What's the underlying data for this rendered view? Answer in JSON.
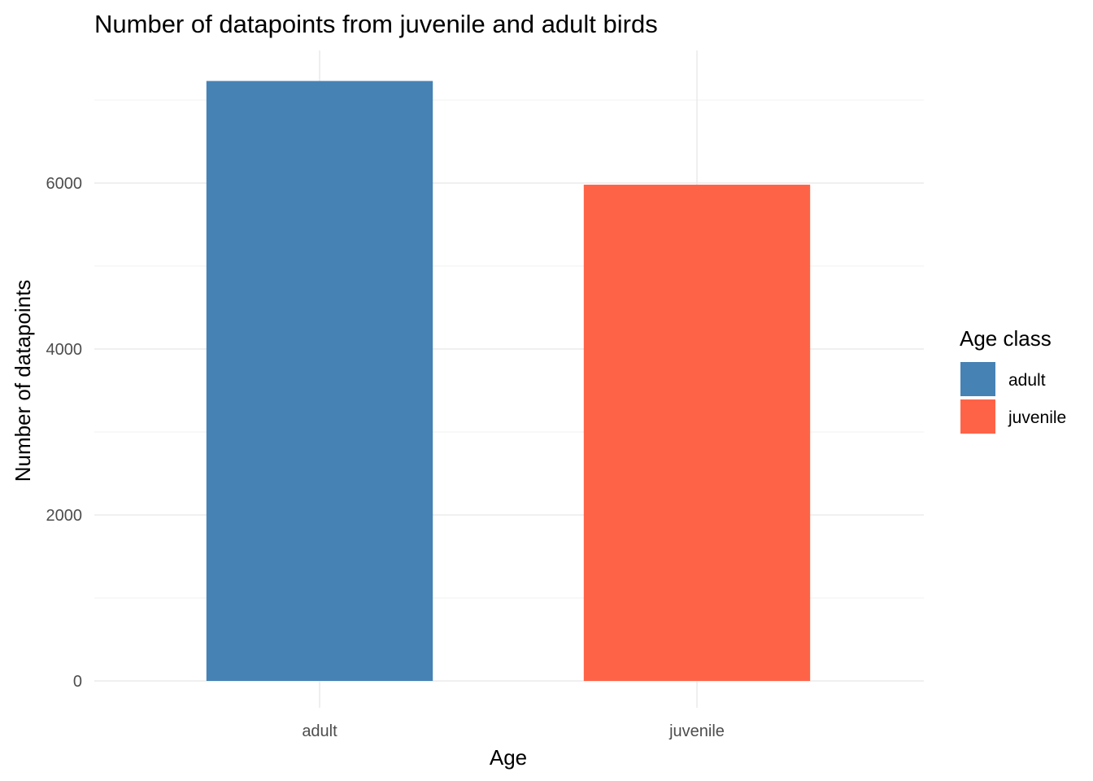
{
  "chart_data": {
    "type": "bar",
    "title": "Number of datapoints from juvenile and adult birds",
    "xlabel": "Age",
    "ylabel": "Number of datapoints",
    "categories": [
      "adult",
      "juvenile"
    ],
    "values": [
      7230,
      5980
    ],
    "colors": [
      "#4682B4",
      "#FF6347"
    ],
    "ylim": [
      0,
      7600
    ],
    "yticks": [
      0,
      2000,
      4000,
      6000
    ],
    "ytick_labels": [
      "0",
      "2000",
      "4000",
      "6000"
    ],
    "grid": true,
    "legend": {
      "title": "Age class",
      "position": "right",
      "entries": [
        {
          "label": "adult",
          "color": "#4682B4"
        },
        {
          "label": "juvenile",
          "color": "#FF6347"
        }
      ]
    }
  }
}
